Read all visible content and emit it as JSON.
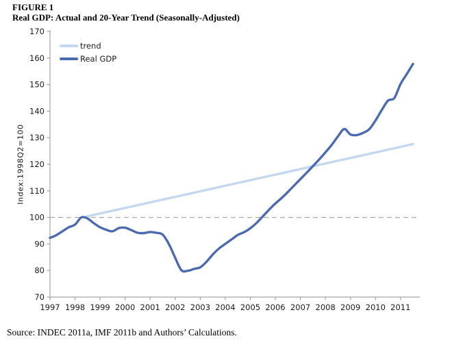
{
  "figure": {
    "label": "FIGURE 1",
    "title": "Real GDP: Actual and 20-Year Trend (Seasonally-Adjusted)",
    "source": "Source: INDEC 2011a, IMF 2011b and Authors’ Calculations."
  },
  "chart_data": {
    "type": "line",
    "title": "Real GDP: Actual and 20-Year Trend (Seasonally-Adjusted)",
    "xlabel": "",
    "ylabel": "Index:1998Q2=100",
    "ylim": [
      70,
      170
    ],
    "ytick_step": 10,
    "xlim": [
      1997,
      2011.77
    ],
    "xticks": [
      1997,
      1998,
      1999,
      2000,
      2001,
      2002,
      2003,
      2004,
      2005,
      2006,
      2007,
      2008,
      2009,
      2010,
      2011
    ],
    "grid": false,
    "legend_position": "top-left",
    "frequency": "quarterly",
    "axis_color": "#a3a3a3",
    "tick_label_color": "#1a1a1a",
    "reference_line": {
      "y": 100,
      "style": "dashed",
      "color": "#a9a9a9"
    },
    "series": [
      {
        "name": "trend",
        "color": "#c3d7f1",
        "smooth": false,
        "x": [
          1998.3,
          2011.5
        ],
        "y": [
          100,
          127.6
        ]
      },
      {
        "name": "Real GDP",
        "color": "#4c6ab0",
        "smooth": true,
        "x": [
          1997.0,
          1997.25,
          1997.5,
          1997.75,
          1998.0,
          1998.25,
          1998.5,
          1998.75,
          1999.0,
          1999.25,
          1999.5,
          1999.75,
          2000.0,
          2000.25,
          2000.5,
          2000.75,
          2001.0,
          2001.25,
          2001.5,
          2001.75,
          2002.0,
          2002.25,
          2002.5,
          2002.75,
          2003.0,
          2003.25,
          2003.5,
          2003.75,
          2004.0,
          2004.25,
          2004.5,
          2004.75,
          2005.0,
          2005.25,
          2005.5,
          2005.75,
          2006.0,
          2006.25,
          2006.5,
          2006.75,
          2007.0,
          2007.25,
          2007.5,
          2007.75,
          2008.0,
          2008.25,
          2008.5,
          2008.75,
          2009.0,
          2009.25,
          2009.5,
          2009.75,
          2010.0,
          2010.25,
          2010.5,
          2010.75,
          2011.0,
          2011.25,
          2011.5
        ],
        "y": [
          92.3,
          93.3,
          94.8,
          96.3,
          97.3,
          100.0,
          99.6,
          97.8,
          96.3,
          95.3,
          94.8,
          96.0,
          96.1,
          95.2,
          94.2,
          94.1,
          94.5,
          94.2,
          93.5,
          89.9,
          84.8,
          80.1,
          79.9,
          80.6,
          81.2,
          83.3,
          86.0,
          88.3,
          90.0,
          91.7,
          93.4,
          94.4,
          95.9,
          97.9,
          100.4,
          102.9,
          105.2,
          107.3,
          109.6,
          112.0,
          114.4,
          116.8,
          119.3,
          121.8,
          124.5,
          127.3,
          130.5,
          133.3,
          131.2,
          131.0,
          131.8,
          133.2,
          136.5,
          140.4,
          144.0,
          144.9,
          150.2,
          154.0,
          157.8
        ]
      }
    ]
  }
}
